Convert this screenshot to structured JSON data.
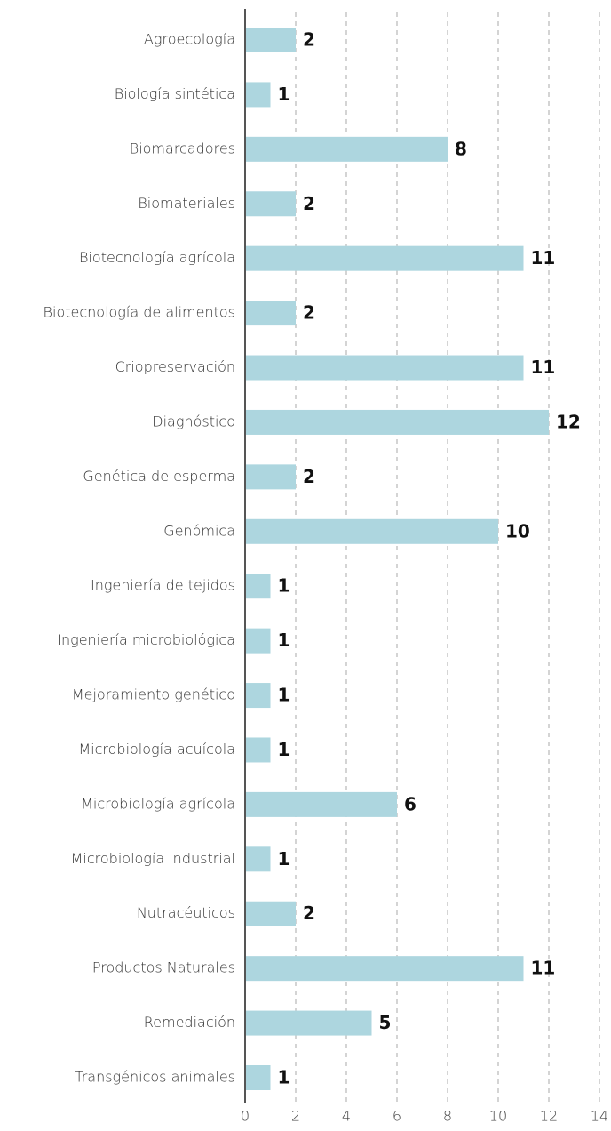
{
  "chart_data": {
    "type": "bar",
    "orientation": "horizontal",
    "categories": [
      "Agroecología",
      "Biología sintética",
      "Biomarcadores",
      "Biomateriales",
      "Biotecnología agrícola",
      "Biotecnología de alimentos",
      "Criopreservación",
      "Diagnóstico",
      "Genética de esperma",
      "Genómica",
      "Ingeniería de tejidos",
      "Ingeniería microbiológica",
      "Mejoramiento genético",
      "Microbiología acuícola",
      "Microbiología agrícola",
      "Microbiología industrial",
      "Nutracéuticos",
      "Productos Naturales",
      "Remediación",
      "Transgénicos animales"
    ],
    "values": [
      2,
      1,
      8,
      2,
      11,
      2,
      11,
      12,
      2,
      10,
      1,
      1,
      1,
      1,
      6,
      1,
      2,
      11,
      5,
      1
    ],
    "color": "#add6df",
    "xlim": [
      0,
      14
    ],
    "xticks": [
      0,
      2,
      4,
      6,
      8,
      10,
      12,
      14
    ],
    "grid": true
  }
}
